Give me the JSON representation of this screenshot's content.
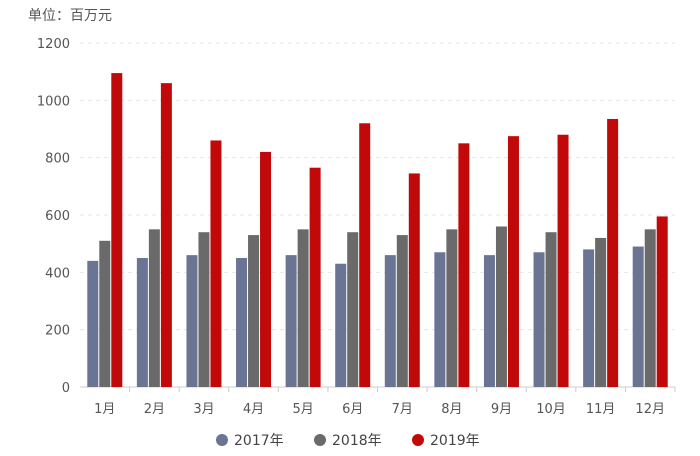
{
  "unit_label": "单位：百万元",
  "chart_data": {
    "type": "bar",
    "categories": [
      "1月",
      "2月",
      "3月",
      "4月",
      "5月",
      "6月",
      "7月",
      "8月",
      "9月",
      "10月",
      "11月",
      "12月"
    ],
    "series": [
      {
        "name": "2017年",
        "color": "#6a7594",
        "values": [
          440,
          450,
          460,
          450,
          460,
          430,
          460,
          470,
          460,
          470,
          480,
          490
        ]
      },
      {
        "name": "2018年",
        "color": "#6a6a6a",
        "values": [
          510,
          550,
          540,
          530,
          550,
          540,
          530,
          550,
          560,
          540,
          520,
          550
        ]
      },
      {
        "name": "2019年",
        "color": "#c2090a",
        "values": [
          1095,
          1060,
          860,
          820,
          765,
          920,
          745,
          850,
          875,
          880,
          935,
          595
        ]
      }
    ],
    "ylim": [
      0,
      1200
    ],
    "yticks": [
      0,
      200,
      400,
      600,
      800,
      1000,
      1200
    ],
    "grid": true,
    "legend_position": "bottom"
  }
}
